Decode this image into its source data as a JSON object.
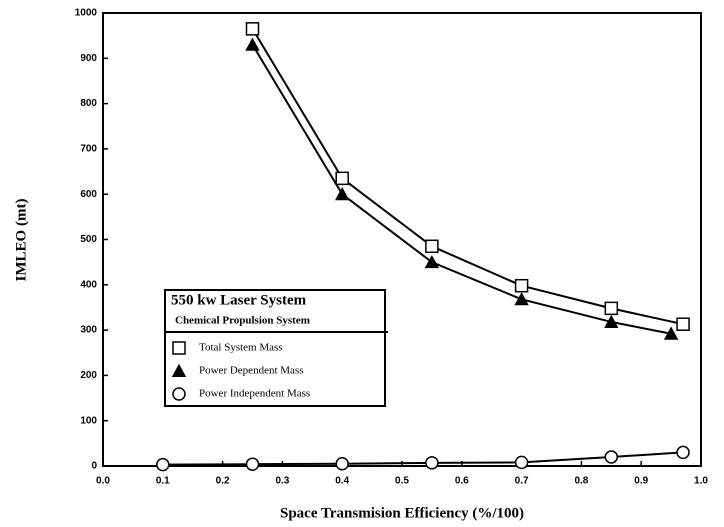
{
  "chart_data": {
    "type": "line",
    "xlabel": "Space Transmision Efficiency (%/100)",
    "ylabel": "IMLEO (mt)",
    "legend_title": "550 kw Laser System",
    "legend_subtitle": "Chemical Propulsion System",
    "legend": "lower left",
    "xlim": [
      0,
      1
    ],
    "ylim": [
      0,
      1000
    ],
    "xticks": [
      {
        "value": 0,
        "label": "0.0"
      },
      0.1,
      0.2,
      0.3,
      0.4,
      0.5,
      0.6,
      0.7,
      0.8,
      0.9,
      {
        "value": 1,
        "label": "1.0"
      }
    ],
    "yticks": [
      0,
      100,
      200,
      300,
      400,
      500,
      600,
      700,
      800,
      900,
      1000
    ],
    "series": [
      {
        "name": "Total System Mass",
        "color": "#000000",
        "marker": "square",
        "x": [
          0.25,
          0.4,
          0.55,
          0.7,
          0.85,
          0.97
        ],
        "values": [
          965,
          635,
          485,
          398,
          348,
          313
        ]
      },
      {
        "name": "Power Dependent Mass",
        "color": "#000000",
        "marker": "triangle",
        "x": [
          0.25,
          0.4,
          0.55,
          0.7,
          0.85,
          0.95
        ],
        "values": [
          930,
          600,
          450,
          368,
          318,
          292
        ]
      },
      {
        "name": "Power Independent Mass",
        "color": "#000000",
        "marker": "circle",
        "x": [
          0.1,
          0.25,
          0.4,
          0.55,
          0.7,
          0.85,
          0.97
        ],
        "values": [
          3,
          4,
          5,
          7,
          8,
          20,
          30
        ]
      }
    ]
  }
}
